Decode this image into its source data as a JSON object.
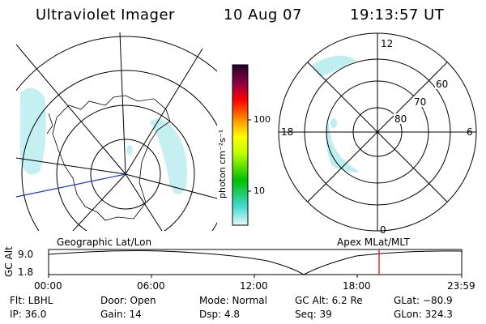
{
  "header": {
    "title": "Ultraviolet Imager",
    "date": "10 Aug 07",
    "time": "19:13:57 UT"
  },
  "colorbar": {
    "label": "photon cm⁻²s⁻¹",
    "ticks": [
      "100",
      "10"
    ]
  },
  "left_map": {
    "title": "Geographic Lat/Lon"
  },
  "right_map": {
    "title": "Apex  MLat/MLT",
    "mlt_labels": {
      "top": "12",
      "right": "6",
      "bottom": "0",
      "left": "18"
    },
    "lat_labels": [
      "60",
      "70",
      "80"
    ]
  },
  "altitude_plot": {
    "ylabel": "GC Alt",
    "ymax": "9.0",
    "ymin": "1.8",
    "x_ticks": [
      "00:00",
      "06:00",
      "12:00",
      "18:00",
      "23:59"
    ],
    "current_marker_color": "#e00000"
  },
  "status": {
    "flt": "Flt: LBHL",
    "ip": "IP: 36.0",
    "door": "Door: Open",
    "gain": "Gain: 14",
    "mode": "Mode: Normal",
    "dsp": "Dsp:    4.8",
    "gcalt": "GC Alt: 6.2 Re",
    "seq": "Seq: 39",
    "glat": "GLat: −80.9",
    "glon": "GLon: 324.3"
  }
}
